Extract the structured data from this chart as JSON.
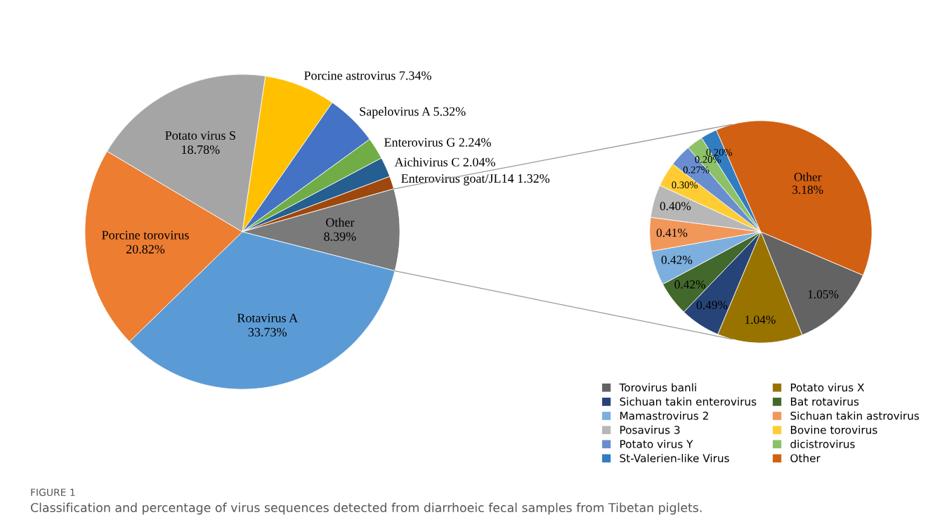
{
  "chart_data": [
    {
      "type": "pie",
      "categories": [
        "Porcine astrovirus",
        "Sapelovirus A",
        "Enterovirus G",
        "Aichivirus C",
        "Enterovirus goat/JL14",
        "Other",
        "Rotavirus A",
        "Porcine torovirus",
        "Potato virus S"
      ],
      "values": [
        7.34,
        5.32,
        2.24,
        2.04,
        1.32,
        8.39,
        33.73,
        20.82,
        18.78
      ],
      "colors": [
        "#ffc000",
        "#4472c4",
        "#70ad47",
        "#255e91",
        "#9e480e",
        "#7a7a7a",
        "#5b9bd5",
        "#ed7d31",
        "#a5a5a5"
      ],
      "value_labels": [
        "7.34%",
        "5.32%",
        "2.24%",
        "2.04%",
        "1.32%",
        "8.39%",
        "33.73%",
        "20.82%",
        "18.78%"
      ],
      "annotations": [
        "FIGURE 1",
        "Classification and percentage of virus sequences detected from diarrhoeic fecal samples from Tibetan piglets."
      ]
    },
    {
      "type": "pie",
      "categories": [
        "Torovirus banli",
        "Potato virus X",
        "Sichuan takin enterovirus",
        "Bat rotavirus",
        "Mamastrovirus 2",
        "Sichuan takin astrovirus",
        "Posavirus 3",
        "Bovine torovirus",
        "Potato virus Y",
        "dicistrovirus",
        "St-Valerien-like Virus",
        "Other"
      ],
      "values": [
        1.05,
        1.04,
        0.49,
        0.42,
        0.42,
        0.41,
        0.4,
        0.3,
        0.27,
        0.2,
        0.2,
        3.18
      ],
      "colors": [
        "#636363",
        "#997300",
        "#264478",
        "#43682b",
        "#7cafdd",
        "#f1975a",
        "#b7b7b7",
        "#ffcd33",
        "#698ed0",
        "#8cc168",
        "#327dc2",
        "#d26012"
      ],
      "value_labels": [
        "1.05%",
        "1.04%",
        "0.49%",
        "0.42%",
        "0.42%",
        "0.41%",
        "0.40%",
        "0.30%",
        "0.27%",
        "0.20%",
        "0.20%",
        "3.18%"
      ],
      "legend": "bottom"
    }
  ]
}
